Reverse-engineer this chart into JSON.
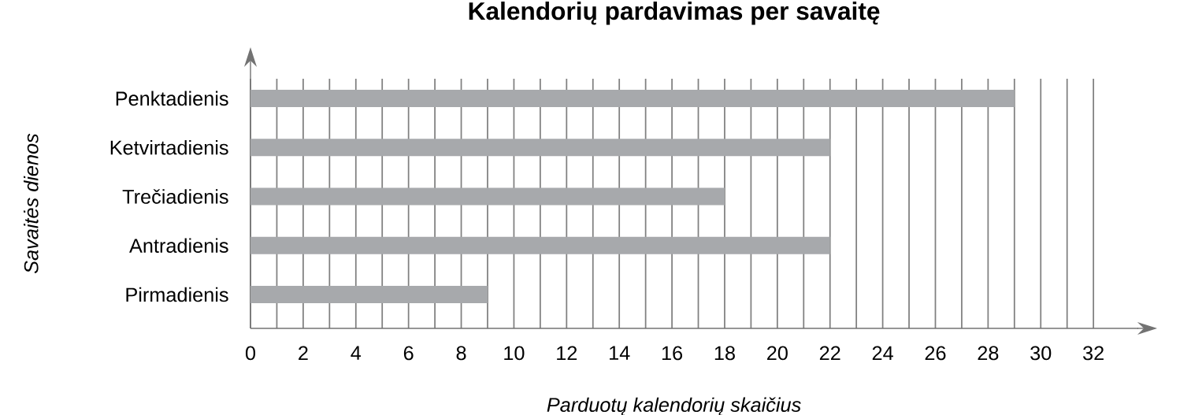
{
  "chart_data": {
    "type": "bar",
    "orientation": "horizontal",
    "title": "Kalendorių pardavimas per savaitę",
    "xlabel": "Parduotų kalendorių skaičius",
    "ylabel": "Savaitės dienos",
    "categories": [
      "Penktadienis",
      "Ketvirtadienis",
      "Trečiadienis",
      "Antradienis",
      "Pirmadienis"
    ],
    "values": [
      29,
      22,
      18,
      22,
      9
    ],
    "color": "#a7a9ac",
    "grid": "x",
    "xlim": [
      0,
      33.7
    ],
    "xticks": [
      0,
      {
        "value": 1,
        "label": null
      },
      2,
      {
        "value": 3,
        "label": null
      },
      4,
      {
        "value": 5,
        "label": null
      },
      6,
      {
        "value": 7,
        "label": null
      },
      8,
      {
        "value": 9,
        "label": null
      },
      10,
      {
        "value": 11,
        "label": null
      },
      12,
      {
        "value": 13,
        "label": null
      },
      14,
      {
        "value": 15,
        "label": null
      },
      16,
      {
        "value": 17,
        "label": null
      },
      18,
      {
        "value": 19,
        "label": null
      },
      20,
      {
        "value": 21,
        "label": null
      },
      22,
      {
        "value": 23,
        "label": null
      },
      24,
      {
        "value": 25,
        "label": null
      },
      26,
      {
        "value": 27,
        "label": null
      },
      28,
      {
        "value": 29,
        "label": null
      },
      30,
      {
        "value": 31,
        "label": null
      },
      32
    ]
  }
}
